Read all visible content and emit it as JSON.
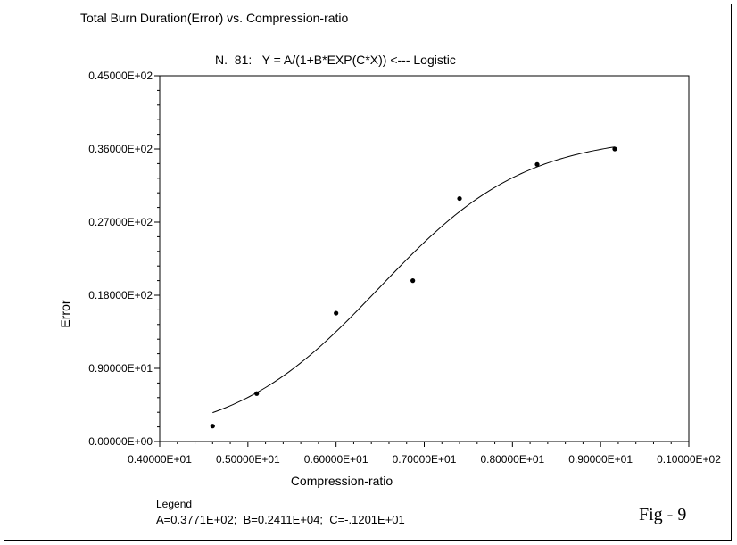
{
  "chart_data": {
    "type": "scatter",
    "title": "Total Burn Duration(Error) vs. Compression-ratio",
    "subtitle": "N.  81:   Y = A/(1+B*EXP(C*X)) <--- Logistic",
    "xlabel": "Compression-ratio",
    "ylabel": "Error",
    "xlim": [
      4.0,
      10.0
    ],
    "ylim": [
      0.0,
      45.0
    ],
    "x_tick_values": [
      4,
      5,
      6,
      7,
      8,
      9,
      10
    ],
    "x_tick_labels": [
      "0.40000E+01",
      "0.50000E+01",
      "0.60000E+01",
      "0.70000E+01",
      "0.80000E+01",
      "0.90000E+01",
      "0.10000E+02"
    ],
    "y_tick_values": [
      0,
      9,
      18,
      27,
      36,
      45
    ],
    "y_tick_labels": [
      "0.00000E+00",
      "0.90000E+01",
      "0.18000E+02",
      "0.27000E+02",
      "0.36000E+02",
      "0.45000E+02"
    ],
    "grid": false,
    "series": [
      {
        "x": [
          4.6,
          5.1,
          6.0,
          6.87,
          7.4,
          8.28,
          9.16
        ],
        "y": [
          1.9,
          5.9,
          15.8,
          19.8,
          29.9,
          34.1,
          36.0
        ]
      }
    ],
    "fit": {
      "model": "logistic",
      "A": 37.71,
      "B": 2411,
      "C": -1.201,
      "x_range": [
        4.6,
        9.16
      ]
    },
    "legend": {
      "title": "Legend",
      "text": "A=0.3771E+02;  B=0.2411E+04;  C=-.1201E+01",
      "placement": "bottom-left"
    },
    "figure_label": "Fig - 9",
    "colors": {
      "line": "#000000",
      "points": "#000000",
      "background": "#ffffff"
    }
  }
}
